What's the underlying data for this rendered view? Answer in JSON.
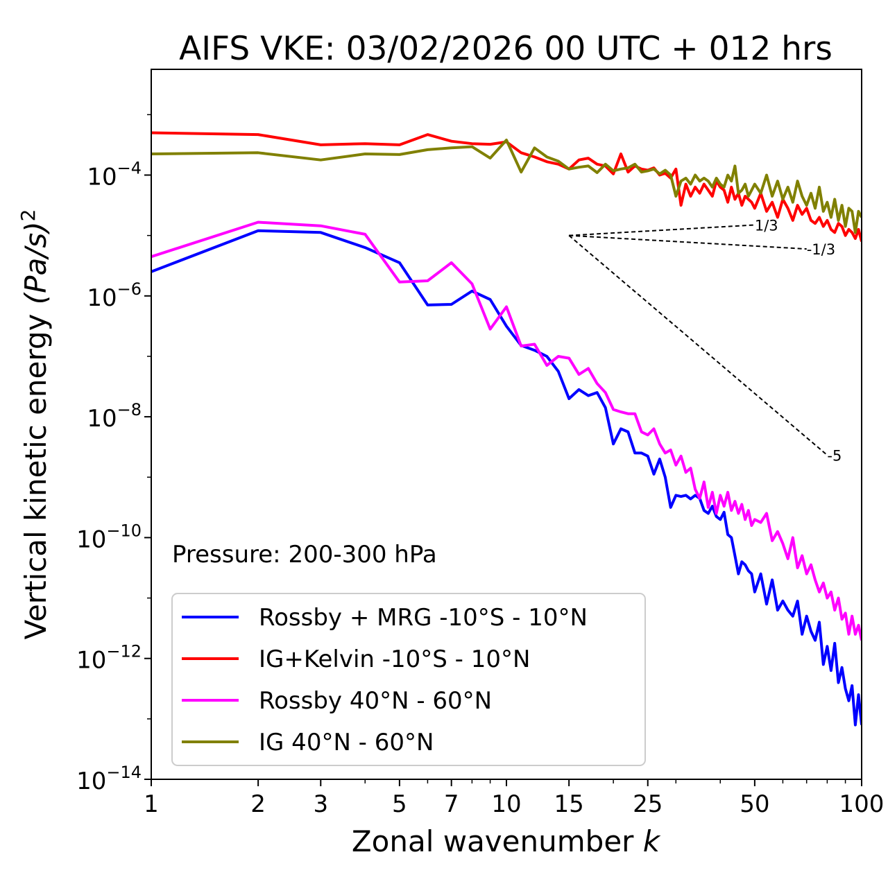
{
  "chart_data": {
    "type": "line",
    "title": "AIFS VKE: 03/02/2026 00 UTC + 012 hrs",
    "xlabel": "Zonal wavenumber",
    "xlabel_var": "k",
    "ylabel": "Vertical kinetic energy",
    "ylabel_unit": "(Pa/s)",
    "ylabel_exp": "2",
    "xscale": "log",
    "yscale": "log",
    "xlim": [
      1,
      100
    ],
    "ylim_log10": [
      -14,
      -2.3
    ],
    "x_ticks": [
      1,
      2,
      3,
      5,
      7,
      10,
      15,
      25,
      50,
      100
    ],
    "x_tick_labels": [
      "1",
      "2",
      "3",
      "5",
      "7",
      "10",
      "15",
      "25",
      "50",
      "100"
    ],
    "y_ticks_log10": [
      -4,
      -6,
      -8,
      -10,
      -12,
      -14
    ],
    "y_tick_base": "10",
    "y_tick_exps": [
      "−4",
      "−6",
      "−8",
      "−10",
      "−12",
      "−14"
    ],
    "annotation": "Pressure: 200-300 hPa",
    "legend_position": "lower-left",
    "reference_slopes": [
      {
        "label": "1/3",
        "x0": 15,
        "y0_log10": -5.0,
        "x1": 50,
        "slope": 0.3333
      },
      {
        "label": "-1/3",
        "x0": 15,
        "y0_log10": -5.0,
        "x1": 70,
        "slope": -0.3333
      },
      {
        "label": "-5",
        "x0": 15,
        "y0_log10": -5.0,
        "x1": 80,
        "slope": -5
      }
    ],
    "series": [
      {
        "name": "Rossby + MRG -10°S - 10°N",
        "color": "#0000ff",
        "x": [
          1,
          2,
          3,
          4,
          5,
          6,
          7,
          8,
          9,
          10,
          11,
          12,
          13,
          14,
          15,
          16,
          17,
          18,
          19,
          20,
          21,
          22,
          23,
          24,
          25,
          26,
          27,
          28,
          29,
          30,
          31,
          32,
          33,
          34,
          35,
          36,
          37,
          38,
          39,
          40,
          41,
          42,
          43,
          44,
          45,
          46,
          47,
          48,
          49,
          50,
          52,
          54,
          56,
          58,
          60,
          62,
          64,
          66,
          68,
          70,
          72,
          74,
          76,
          78,
          80,
          82,
          84,
          86,
          88,
          90,
          92,
          94,
          96,
          98,
          100
        ],
        "log10_y": [
          -5.6,
          -4.92,
          -4.95,
          -5.2,
          -5.45,
          -6.15,
          -6.14,
          -5.92,
          -6.06,
          -6.5,
          -6.82,
          -6.9,
          -7.0,
          -7.25,
          -7.7,
          -7.55,
          -7.65,
          -7.6,
          -7.85,
          -8.45,
          -8.2,
          -8.25,
          -8.6,
          -8.6,
          -8.65,
          -8.95,
          -8.7,
          -9.0,
          -9.5,
          -9.3,
          -9.32,
          -9.3,
          -9.36,
          -9.3,
          -9.35,
          -9.55,
          -9.6,
          -9.48,
          -9.65,
          -9.7,
          -9.58,
          -9.95,
          -10.0,
          -10.3,
          -10.6,
          -10.4,
          -10.45,
          -10.55,
          -10.6,
          -10.9,
          -10.6,
          -11.1,
          -10.7,
          -11.2,
          -11.05,
          -11.2,
          -11.3,
          -11.05,
          -11.6,
          -11.3,
          -11.55,
          -11.7,
          -11.4,
          -12.1,
          -11.8,
          -12.2,
          -11.75,
          -12.4,
          -12.15,
          -12.5,
          -12.7,
          -12.45,
          -13.1,
          -12.6,
          -13.1
        ]
      },
      {
        "name": "IG+Kelvin -10°S - 10°N",
        "color": "#ff0000",
        "x": [
          1,
          2,
          3,
          4,
          5,
          6,
          7,
          8,
          9,
          10,
          11,
          12,
          13,
          14,
          15,
          16,
          17,
          18,
          19,
          20,
          21,
          22,
          23,
          24,
          25,
          26,
          27,
          28,
          29,
          30,
          31,
          32,
          33,
          34,
          35,
          36,
          37,
          38,
          39,
          40,
          41,
          42,
          43,
          44,
          45,
          46,
          47,
          48,
          49,
          50,
          52,
          54,
          56,
          58,
          60,
          62,
          64,
          66,
          68,
          70,
          72,
          74,
          76,
          78,
          80,
          82,
          84,
          86,
          88,
          90,
          92,
          94,
          96,
          98,
          100
        ],
        "log10_y": [
          -3.3,
          -3.33,
          -3.5,
          -3.48,
          -3.5,
          -3.33,
          -3.44,
          -3.48,
          -3.49,
          -3.45,
          -3.63,
          -3.7,
          -3.78,
          -3.82,
          -3.9,
          -3.75,
          -3.72,
          -3.82,
          -3.85,
          -3.98,
          -3.65,
          -3.95,
          -3.85,
          -3.9,
          -3.92,
          -3.88,
          -4.0,
          -3.97,
          -4.05,
          -3.9,
          -4.5,
          -4.15,
          -4.35,
          -4.2,
          -4.3,
          -4.15,
          -4.25,
          -4.35,
          -4.1,
          -4.2,
          -4.25,
          -4.45,
          -4.2,
          -4.4,
          -4.3,
          -4.5,
          -4.35,
          -4.4,
          -4.45,
          -4.55,
          -4.3,
          -4.6,
          -4.45,
          -4.7,
          -4.4,
          -4.55,
          -4.75,
          -4.5,
          -4.65,
          -4.55,
          -4.75,
          -4.8,
          -4.7,
          -4.85,
          -4.75,
          -4.9,
          -4.95,
          -4.8,
          -4.85,
          -5.0,
          -4.9,
          -4.95,
          -5.05,
          -4.9,
          -5.1
        ]
      },
      {
        "name": "Rossby 40°N - 60°N",
        "color": "#ff00ff",
        "x": [
          1,
          2,
          3,
          4,
          5,
          6,
          7,
          8,
          9,
          10,
          11,
          12,
          13,
          14,
          15,
          16,
          17,
          18,
          19,
          20,
          21,
          22,
          23,
          24,
          25,
          26,
          27,
          28,
          29,
          30,
          31,
          32,
          33,
          34,
          35,
          36,
          37,
          38,
          39,
          40,
          41,
          42,
          43,
          44,
          45,
          46,
          47,
          48,
          49,
          50,
          52,
          54,
          56,
          58,
          60,
          62,
          64,
          66,
          68,
          70,
          72,
          74,
          76,
          78,
          80,
          82,
          84,
          86,
          88,
          90,
          92,
          94,
          96,
          98,
          100
        ],
        "log10_y": [
          -5.35,
          -4.78,
          -4.84,
          -4.98,
          -5.77,
          -5.75,
          -5.45,
          -5.8,
          -6.55,
          -6.18,
          -6.83,
          -6.8,
          -7.15,
          -7.0,
          -7.03,
          -7.3,
          -7.2,
          -7.45,
          -7.6,
          -7.88,
          -7.92,
          -7.95,
          -7.95,
          -8.25,
          -8.3,
          -8.2,
          -8.45,
          -8.6,
          -8.55,
          -8.8,
          -8.65,
          -8.92,
          -8.85,
          -9.2,
          -9.35,
          -9.08,
          -9.5,
          -9.25,
          -9.6,
          -9.3,
          -9.48,
          -9.25,
          -9.55,
          -9.4,
          -9.6,
          -9.45,
          -9.7,
          -9.55,
          -9.8,
          -9.7,
          -9.75,
          -9.6,
          -10.05,
          -9.9,
          -10.1,
          -10.35,
          -10.0,
          -10.5,
          -10.3,
          -10.6,
          -10.45,
          -10.7,
          -10.9,
          -10.75,
          -11.0,
          -10.9,
          -11.2,
          -11.0,
          -11.35,
          -11.25,
          -11.6,
          -11.3,
          -11.6,
          -11.45,
          -11.7
        ]
      },
      {
        "name": "IG 40°N - 60°N",
        "color": "#808000",
        "x": [
          1,
          2,
          3,
          4,
          5,
          6,
          7,
          8,
          9,
          10,
          11,
          12,
          13,
          14,
          15,
          16,
          17,
          18,
          19,
          20,
          21,
          22,
          23,
          24,
          25,
          26,
          27,
          28,
          29,
          30,
          31,
          32,
          33,
          34,
          35,
          36,
          37,
          38,
          39,
          40,
          41,
          42,
          43,
          44,
          45,
          46,
          47,
          48,
          49,
          50,
          52,
          54,
          56,
          58,
          60,
          62,
          64,
          66,
          68,
          70,
          72,
          74,
          76,
          78,
          80,
          82,
          84,
          86,
          88,
          90,
          92,
          94,
          96,
          98,
          100
        ],
        "log10_y": [
          -3.65,
          -3.63,
          -3.75,
          -3.65,
          -3.66,
          -3.58,
          -3.55,
          -3.53,
          -3.72,
          -3.42,
          -3.95,
          -3.55,
          -3.7,
          -3.77,
          -3.9,
          -3.87,
          -3.85,
          -3.96,
          -3.82,
          -3.93,
          -3.9,
          -3.88,
          -3.82,
          -3.95,
          -3.93,
          -3.9,
          -3.98,
          -3.92,
          -4.0,
          -4.35,
          -4.1,
          -4.05,
          -4.15,
          -4.0,
          -4.1,
          -4.05,
          -4.1,
          -4.2,
          -4.05,
          -4.15,
          -4.2,
          -4.0,
          -4.1,
          -3.85,
          -4.3,
          -4.25,
          -4.15,
          -4.35,
          -4.25,
          -4.15,
          -4.3,
          -4.0,
          -4.35,
          -4.1,
          -4.4,
          -4.2,
          -4.45,
          -4.1,
          -4.35,
          -4.5,
          -4.3,
          -4.55,
          -4.2,
          -4.6,
          -4.45,
          -4.7,
          -4.4,
          -4.75,
          -4.5,
          -4.85,
          -4.55,
          -4.6,
          -4.95,
          -4.6,
          -4.7
        ]
      }
    ]
  }
}
